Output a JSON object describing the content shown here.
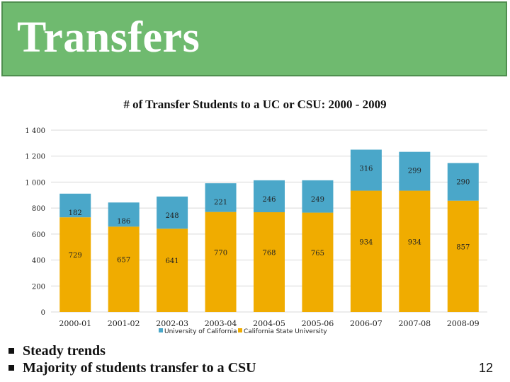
{
  "slide": {
    "title": "Transfers",
    "bullets": [
      "Steady trends",
      "Majority of students transfer to a CSU"
    ],
    "page_number": "12"
  },
  "colors": {
    "title_bar": "#6fba6f",
    "uc": "#4aa7c9",
    "csu": "#f0ac00"
  },
  "chart_data": {
    "type": "bar",
    "stacked": true,
    "title": "# of Transfer Students to a UC or CSU: 2000 - 2009",
    "categories": [
      "2000-01",
      "2001-02",
      "2002-03",
      "2003-04",
      "2004-05",
      "2005-06",
      "2006-07",
      "2007-08",
      "2008-09"
    ],
    "series": [
      {
        "name": "California State University",
        "values": [
          729,
          657,
          641,
          770,
          768,
          765,
          934,
          934,
          857
        ]
      },
      {
        "name": "University of California",
        "values": [
          182,
          186,
          248,
          221,
          246,
          249,
          316,
          299,
          290
        ]
      }
    ],
    "yticks": [
      "0",
      "200",
      "400",
      "600",
      "800",
      "1 000",
      "1 200",
      "1 400"
    ],
    "ylim": [
      0,
      1400
    ],
    "grid": true,
    "legend": "bottom"
  }
}
